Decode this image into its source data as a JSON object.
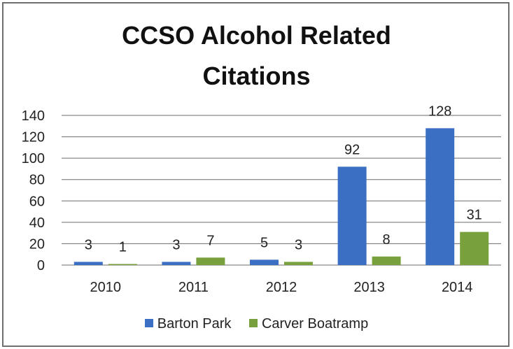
{
  "chart_data": {
    "type": "bar",
    "title": "CCSO Alcohol Related Citations",
    "title_lines": [
      "CCSO Alcohol Related",
      "Citations"
    ],
    "categories": [
      "2010",
      "2011",
      "2012",
      "2013",
      "2014"
    ],
    "series": [
      {
        "name": "Barton Park",
        "values": [
          3,
          3,
          5,
          92,
          128
        ],
        "color": "#3a6fc4"
      },
      {
        "name": "Carver Boatramp",
        "values": [
          1,
          7,
          3,
          8,
          31
        ],
        "color": "#78a03c"
      }
    ],
    "ylim": [
      0,
      140
    ],
    "yticks": [
      0,
      20,
      40,
      60,
      80,
      100,
      120,
      140
    ],
    "xlabel": "",
    "ylabel": "",
    "grid": true,
    "legend_position": "bottom"
  }
}
